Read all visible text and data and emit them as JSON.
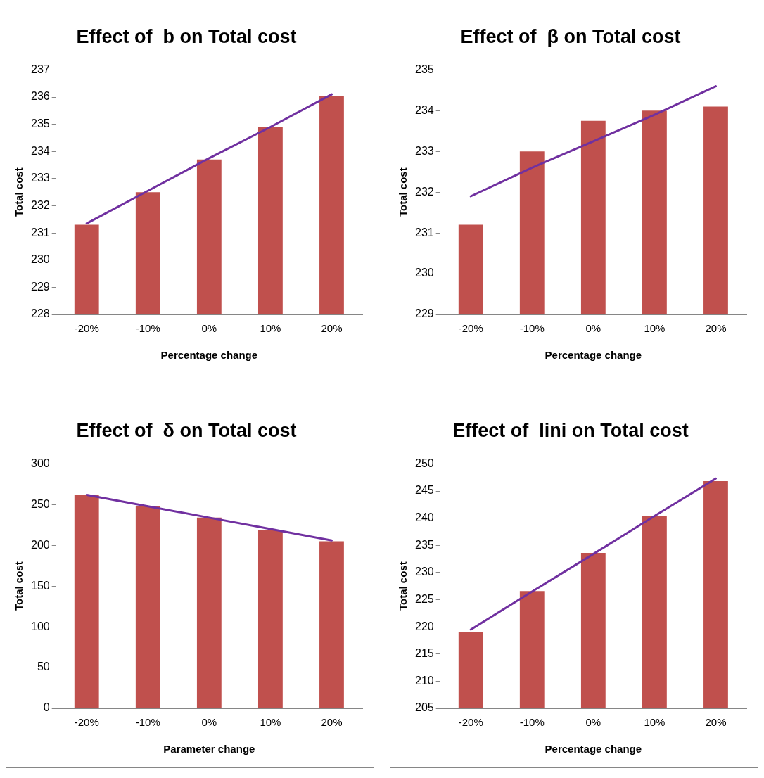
{
  "chart_data": [
    {
      "type": "bar",
      "title": "Effect of  b on Total cost",
      "xlabel": "Percentage change",
      "ylabel": "Total cost",
      "categories": [
        "-20%",
        "-10%",
        "0%",
        "10%",
        "20%"
      ],
      "ylim": [
        228,
        237
      ],
      "yticks": [
        228,
        229,
        230,
        231,
        232,
        233,
        234,
        235,
        236,
        237
      ],
      "series": [
        {
          "color": "#c0504d",
          "values": [
            231.3,
            232.5,
            233.7,
            234.9,
            236.05
          ]
        },
        {
          "type": "line",
          "color": "#7030a0",
          "values": [
            231.35,
            232.55,
            233.75,
            234.9,
            236.1
          ]
        }
      ]
    },
    {
      "type": "bar",
      "title": "Effect of  β on Total cost",
      "xlabel": "Percentage change",
      "ylabel": "Total cost",
      "categories": [
        "-20%",
        "-10%",
        "0%",
        "10%",
        "20%"
      ],
      "ylim": [
        229,
        235
      ],
      "yticks": [
        229,
        230,
        231,
        232,
        233,
        234,
        235
      ],
      "series": [
        {
          "color": "#c0504d",
          "values": [
            231.2,
            233.0,
            233.75,
            234.0,
            234.1
          ]
        },
        {
          "type": "line",
          "color": "#7030a0",
          "values": [
            231.9,
            232.6,
            233.25,
            233.9,
            234.6
          ]
        }
      ]
    },
    {
      "type": "bar",
      "title": "Effect of  δ on Total cost",
      "xlabel": "Parameter change",
      "ylabel": "Total cost",
      "categories": [
        "-20%",
        "-10%",
        "0%",
        "10%",
        "20%"
      ],
      "ylim": [
        0,
        300
      ],
      "yticks": [
        0,
        50,
        100,
        150,
        200,
        250,
        300
      ],
      "series": [
        {
          "color": "#c0504d",
          "values": [
            262,
            248,
            234,
            219,
            205
          ]
        },
        {
          "type": "line",
          "color": "#7030a0",
          "values": [
            262,
            248,
            234,
            220,
            206
          ]
        }
      ]
    },
    {
      "type": "bar",
      "title": "Effect of  Iini on Total cost",
      "xlabel": "Percentage change",
      "ylabel": "Total cost",
      "categories": [
        "-20%",
        "-10%",
        "0%",
        "10%",
        "20%"
      ],
      "ylim": [
        205,
        250
      ],
      "yticks": [
        205,
        210,
        215,
        220,
        225,
        230,
        235,
        240,
        245,
        250
      ],
      "series": [
        {
          "color": "#c0504d",
          "values": [
            219.1,
            226.6,
            233.6,
            240.4,
            246.8
          ]
        },
        {
          "type": "line",
          "color": "#7030a0",
          "values": [
            219.5,
            226.5,
            233.4,
            240.4,
            247.3
          ]
        }
      ]
    }
  ]
}
